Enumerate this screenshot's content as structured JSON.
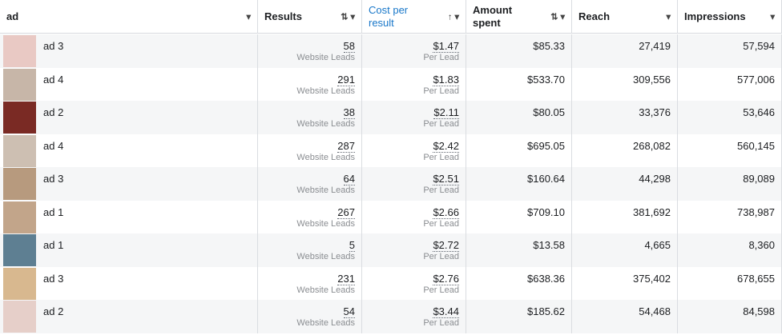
{
  "header": {
    "columns": [
      "ad",
      "Results",
      "Cost per result",
      "Amount spent",
      "Reach",
      "Impressions"
    ]
  },
  "table": {
    "rows": [
      {
        "ad": "ad 3",
        "results": "58",
        "results_unit": "Website Leads",
        "cost": "$1.47",
        "cost_unit": "Per Lead",
        "amount": "$85.33",
        "reach": "27,419",
        "impressions": "57,594"
      },
      {
        "ad": "ad 4",
        "results": "291",
        "results_unit": "Website Leads",
        "cost": "$1.83",
        "cost_unit": "Per Lead",
        "amount": "$533.70",
        "reach": "309,556",
        "impressions": "577,006"
      },
      {
        "ad": "ad 2",
        "results": "38",
        "results_unit": "Website Leads",
        "cost": "$2.11",
        "cost_unit": "Per Lead",
        "amount": "$80.05",
        "reach": "33,376",
        "impressions": "53,646"
      },
      {
        "ad": "ad 4",
        "results": "287",
        "results_unit": "Website Leads",
        "cost": "$2.42",
        "cost_unit": "Per Lead",
        "amount": "$695.05",
        "reach": "268,082",
        "impressions": "560,145"
      },
      {
        "ad": "ad 3",
        "results": "64",
        "results_unit": "Website Leads",
        "cost": "$2.51",
        "cost_unit": "Per Lead",
        "amount": "$160.64",
        "reach": "44,298",
        "impressions": "89,089"
      },
      {
        "ad": "ad 1",
        "results": "267",
        "results_unit": "Website Leads",
        "cost": "$2.66",
        "cost_unit": "Per Lead",
        "amount": "$709.10",
        "reach": "381,692",
        "impressions": "738,987"
      },
      {
        "ad": "ad 1",
        "results": "5",
        "results_unit": "Website Leads",
        "cost": "$2.72",
        "cost_unit": "Per Lead",
        "amount": "$13.58",
        "reach": "4,665",
        "impressions": "8,360"
      },
      {
        "ad": "ad 3",
        "results": "231",
        "results_unit": "Website Leads",
        "cost": "$2.76",
        "cost_unit": "Per Lead",
        "amount": "$638.36",
        "reach": "375,402",
        "impressions": "678,655"
      },
      {
        "ad": "ad 2",
        "results": "54",
        "results_unit": "Website Leads",
        "cost": "$3.44",
        "cost_unit": "Per Lead",
        "amount": "$185.62",
        "reach": "54,468",
        "impressions": "84,598"
      }
    ]
  }
}
